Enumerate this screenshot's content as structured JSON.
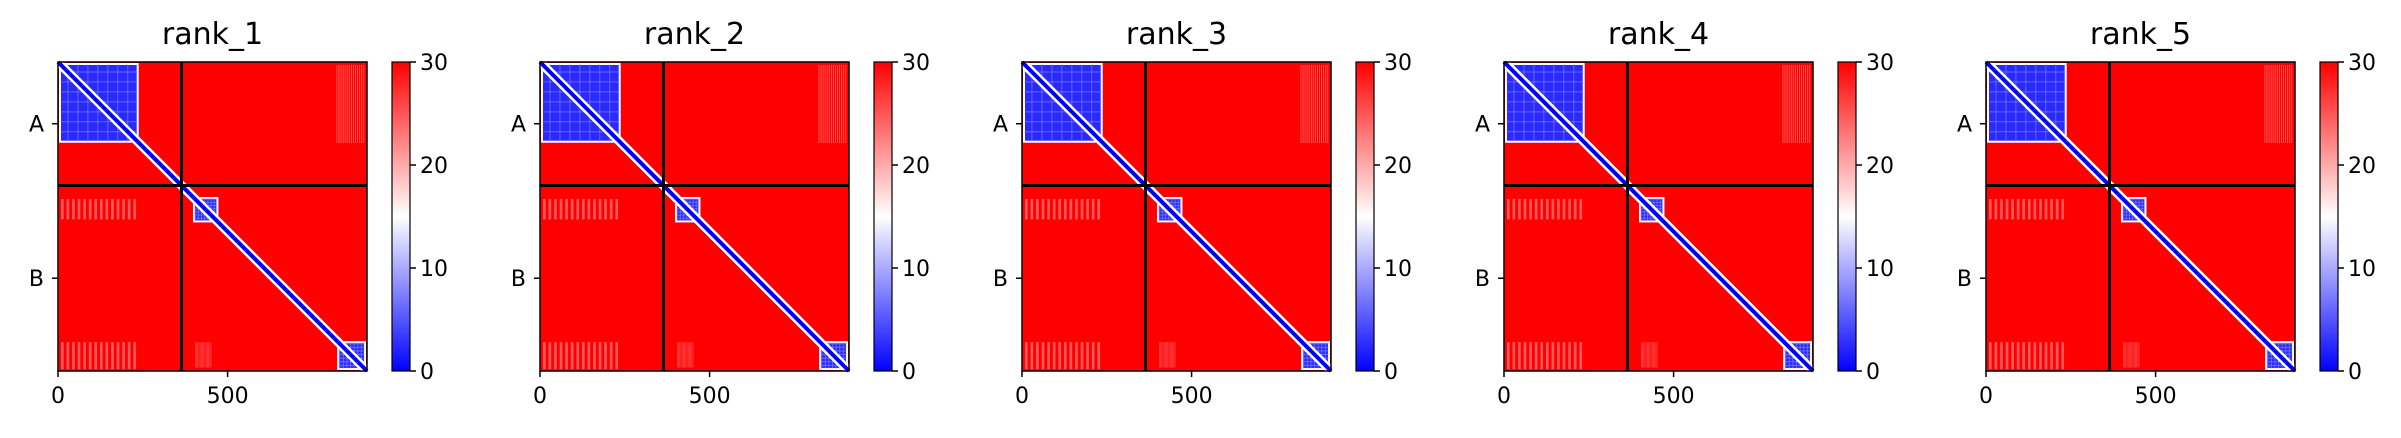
{
  "chart_data": [
    {
      "type": "heatmap",
      "title": "rank_1",
      "x_range": [
        0,
        911
      ],
      "y_range": [
        0,
        911
      ],
      "x_ticks": [
        0,
        500
      ],
      "chain_boundary": 364,
      "y_tick_labels": [
        "A",
        "B"
      ],
      "colorbar": {
        "min": 0,
        "max": 30,
        "ticks": [
          0,
          10,
          20,
          30
        ],
        "colors": [
          "#0000ff",
          "#ffffff",
          "#ff0000"
        ]
      },
      "diagonal_blocks": [
        {
          "start": 0,
          "end": 235
        },
        {
          "start": 395,
          "end": 470
        },
        {
          "start": 820,
          "end": 905
        }
      ]
    },
    {
      "type": "heatmap",
      "title": "rank_2",
      "x_range": [
        0,
        911
      ],
      "y_range": [
        0,
        911
      ],
      "x_ticks": [
        0,
        500
      ],
      "chain_boundary": 364,
      "y_tick_labels": [
        "A",
        "B"
      ],
      "colorbar": {
        "min": 0,
        "max": 30,
        "ticks": [
          0,
          10,
          20,
          30
        ],
        "colors": [
          "#0000ff",
          "#ffffff",
          "#ff0000"
        ]
      },
      "diagonal_blocks": [
        {
          "start": 0,
          "end": 235
        },
        {
          "start": 395,
          "end": 470
        },
        {
          "start": 820,
          "end": 905
        }
      ]
    },
    {
      "type": "heatmap",
      "title": "rank_3",
      "x_range": [
        0,
        911
      ],
      "y_range": [
        0,
        911
      ],
      "x_ticks": [
        0,
        500
      ],
      "chain_boundary": 364,
      "y_tick_labels": [
        "A",
        "B"
      ],
      "colorbar": {
        "min": 0,
        "max": 30,
        "ticks": [
          0,
          10,
          20,
          30
        ],
        "colors": [
          "#0000ff",
          "#ffffff",
          "#ff0000"
        ]
      },
      "diagonal_blocks": [
        {
          "start": 0,
          "end": 235
        },
        {
          "start": 395,
          "end": 470
        },
        {
          "start": 820,
          "end": 905
        }
      ]
    },
    {
      "type": "heatmap",
      "title": "rank_4",
      "x_range": [
        0,
        911
      ],
      "y_range": [
        0,
        911
      ],
      "x_ticks": [
        0,
        500
      ],
      "chain_boundary": 364,
      "y_tick_labels": [
        "A",
        "B"
      ],
      "colorbar": {
        "min": 0,
        "max": 30,
        "ticks": [
          0,
          10,
          20,
          30
        ],
        "colors": [
          "#0000ff",
          "#ffffff",
          "#ff0000"
        ]
      },
      "diagonal_blocks": [
        {
          "start": 0,
          "end": 235
        },
        {
          "start": 395,
          "end": 470
        },
        {
          "start": 820,
          "end": 905
        }
      ]
    },
    {
      "type": "heatmap",
      "title": "rank_5",
      "x_range": [
        0,
        911
      ],
      "y_range": [
        0,
        911
      ],
      "x_ticks": [
        0,
        500
      ],
      "chain_boundary": 364,
      "y_tick_labels": [
        "A",
        "B"
      ],
      "colorbar": {
        "min": 0,
        "max": 30,
        "ticks": [
          0,
          10,
          20,
          30
        ],
        "colors": [
          "#0000ff",
          "#ffffff",
          "#ff0000"
        ]
      },
      "diagonal_blocks": [
        {
          "start": 0,
          "end": 235
        },
        {
          "start": 395,
          "end": 470
        },
        {
          "start": 820,
          "end": 905
        }
      ]
    }
  ]
}
